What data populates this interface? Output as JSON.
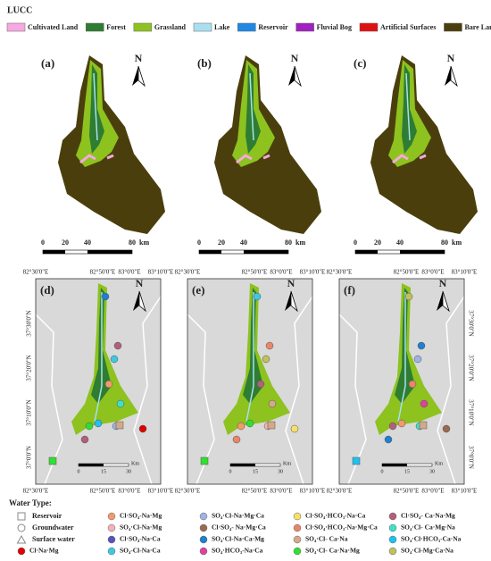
{
  "lucc": {
    "title": "LUCC",
    "items": [
      {
        "label": "Cultivated Land",
        "color": "#f7a8e0"
      },
      {
        "label": "Forest",
        "color": "#2e7d32"
      },
      {
        "label": "Grassland",
        "color": "#8dc21f"
      },
      {
        "label": "Lake",
        "color": "#a8e0f0"
      },
      {
        "label": "Reservoir",
        "color": "#1e88e5"
      },
      {
        "label": "Fluvial Bog",
        "color": "#a020c0"
      },
      {
        "label": "Artificial Surfaces",
        "color": "#e01010"
      },
      {
        "label": "Bare Land",
        "color": "#4a3f0c"
      }
    ]
  },
  "panels": {
    "labels": [
      "(a)",
      "(b)",
      "(c)",
      "(d)",
      "(e)",
      "(f)"
    ],
    "north": "N"
  },
  "scale_top": {
    "labels": [
      "0",
      "20",
      "40",
      "80"
    ],
    "unit": "km"
  },
  "scale_bottom": {
    "labels": [
      "0",
      "15",
      "30"
    ],
    "unit": "Km"
  },
  "lon_labels": [
    "82°30'0\"E",
    "82°50'0\"E",
    "83°0'0\"E",
    "83°10'0\"E"
  ],
  "lat_labels": [
    "37°30'0\"N",
    "37°20'0\"N",
    "37°10'0\"N",
    "37°0'0\"N"
  ],
  "water_type": {
    "title": "Water Type:",
    "sources": [
      "Reservoir",
      "Groundwater",
      "Surface water"
    ],
    "types": [
      {
        "label": "Cl·Na·Mg",
        "color": "#e00000"
      },
      {
        "label": "Cl·SO₄-Na·Mg",
        "color": "#f29a6a"
      },
      {
        "label": "SO₄·Cl-Na·Mg·Ca",
        "color": "#9fb2e6"
      },
      {
        "label": "Cl·SO₄·HCO₃-Na·Ca",
        "color": "#f5e06a"
      },
      {
        "label": "Cl·SO₄- Ca·Na·Mg",
        "color": "#b0607a"
      },
      {
        "label": "SO₄·Cl-Na·Mg",
        "color": "#f4b0b8"
      },
      {
        "label": "Cl·SO₄- Na·Mg·Ca",
        "color": "#9a6a50"
      },
      {
        "label": "Cl·SO₄·HCO₃-Na·Mg·Ca",
        "color": "#e8866a"
      },
      {
        "label": "SO₄·Cl- Ca·Mg·Na",
        "color": "#40e0c8"
      },
      {
        "label": "Cl·SO₄-Na·Ca",
        "color": "#5a50c0"
      },
      {
        "label": "SO₄·Cl-Na·Ca·Mg",
        "color": "#1f7fd0"
      },
      {
        "label": "SO₄·Cl- Ca·Na",
        "color": "#d4a888"
      },
      {
        "label": "SO₄·Cl·HCO₃-Ca·Na",
        "color": "#20c0f0"
      },
      {
        "label": "SO₄-Cl-Na·Ca",
        "color": "#40c8e0"
      },
      {
        "label": "SO₄·HCO₃-Na·Ca",
        "color": "#e040a0"
      },
      {
        "label": "SO₄·Cl- Ca·Na·Mg",
        "color": "#30e030"
      },
      {
        "label": "SO₄·Cl-Mg·Ca·Na",
        "color": "#c0c060"
      }
    ]
  }
}
